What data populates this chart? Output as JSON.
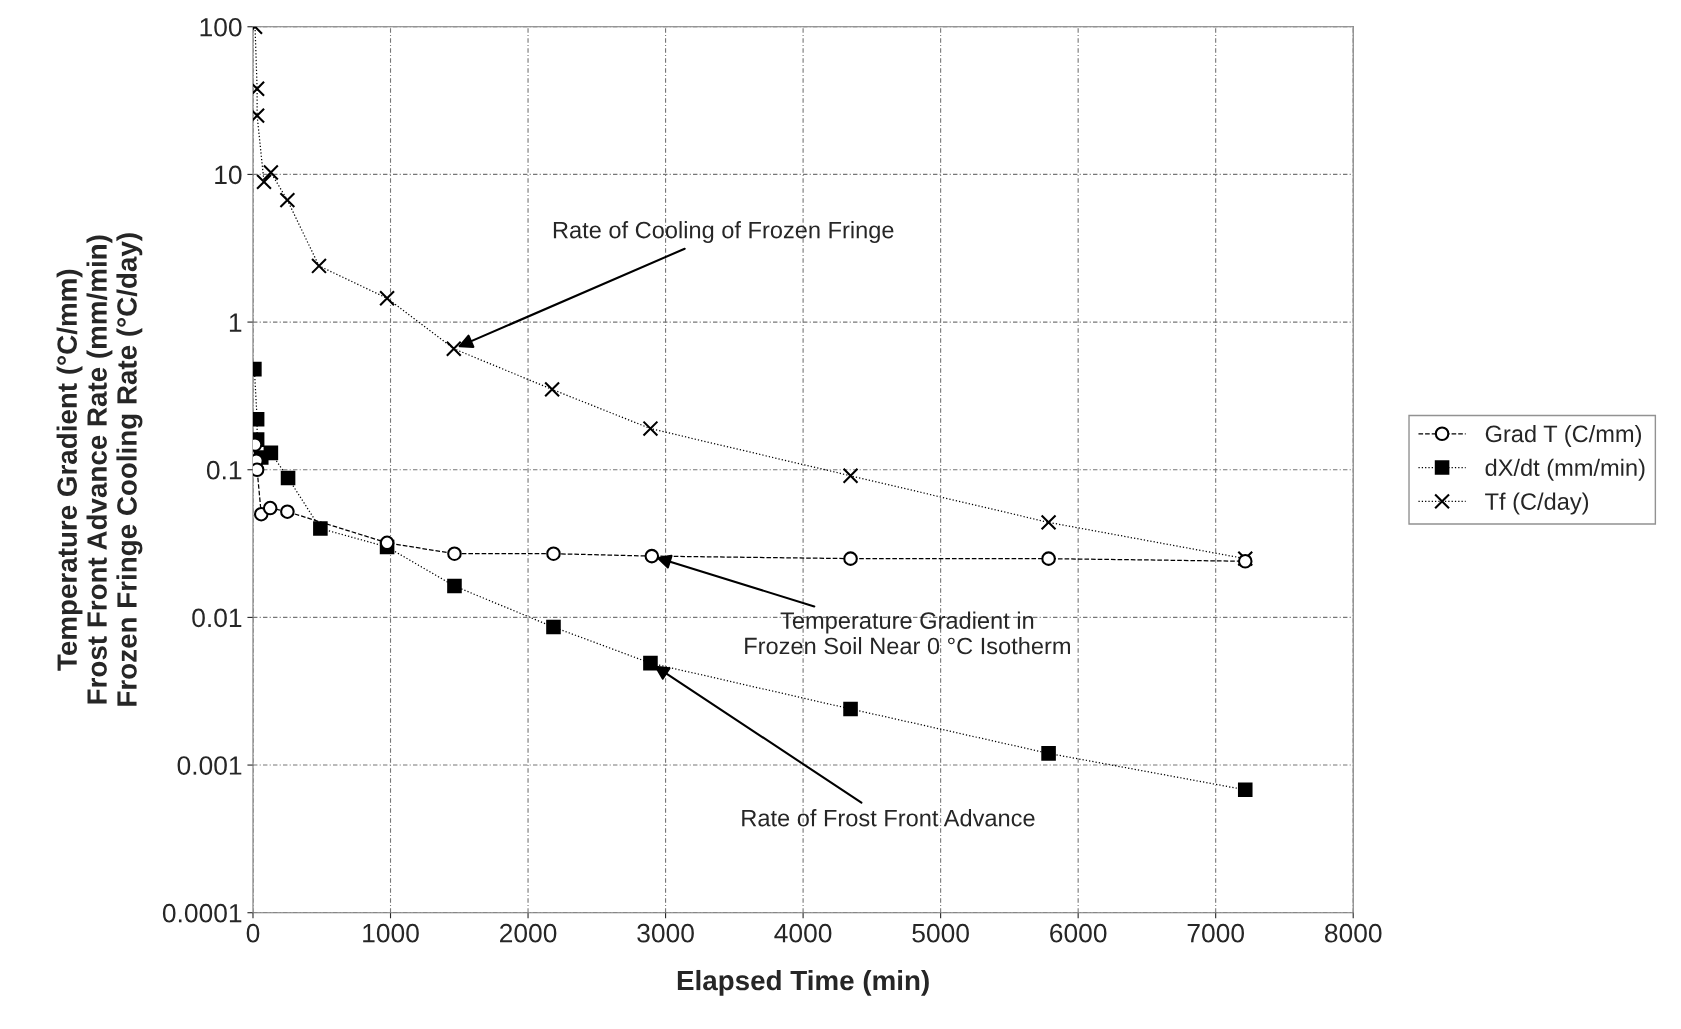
{
  "chart_data": {
    "type": "line",
    "xlabel": "Elapsed Time (min)",
    "ylabel": "Temperature Gradient (°C/mm)\nFrost Front Advance Rate (mm/min)\nFrozen Fringe Cooling Rate (°C/day)",
    "log": "y",
    "grid": true,
    "legend": "right",
    "xlim": [
      0,
      8000
    ],
    "xticks": [
      0,
      1000,
      2000,
      3000,
      4000,
      5000,
      6000,
      7000,
      8000
    ],
    "ylim": [
      0.0001,
      100
    ],
    "yticks": [
      0.0001,
      0.001,
      0.01,
      0.1,
      1,
      10,
      100
    ],
    "series": [
      {
        "name": "Grad T (C/mm)",
        "color": "#000000",
        "marker": "circle",
        "line_style": "dashed",
        "x": [
          15,
          25,
          30,
          60,
          125,
          250,
          975,
          1465,
          2185,
          2900,
          4345,
          5785,
          7215
        ],
        "values": [
          0.148,
          0.115,
          0.1,
          0.05,
          0.055,
          0.052,
          0.032,
          0.027,
          0.027,
          0.026,
          0.025,
          0.025,
          0.024
        ]
      },
      {
        "name": "dX/dt (mm/min)",
        "color": "#000000",
        "marker": "square",
        "line_style": "dotted",
        "x": [
          10,
          30,
          30,
          60,
          130,
          255,
          490,
          975,
          1465,
          2185,
          2890,
          4345,
          5785,
          7215
        ],
        "values": [
          0.48,
          0.22,
          0.16,
          0.121,
          0.13,
          0.088,
          0.04,
          0.03,
          0.0163,
          0.0086,
          0.0049,
          0.0024,
          0.0012,
          0.00068
        ]
      },
      {
        "name": "Tf (C/day)",
        "color": "#000000",
        "marker": "cross",
        "line_style": "dotted",
        "x": [
          15,
          30,
          30,
          80,
          130,
          250,
          480,
          975,
          1460,
          2175,
          2890,
          4345,
          5785,
          7215
        ],
        "values": [
          100,
          38,
          25,
          8.9,
          10.3,
          6.7,
          2.4,
          1.45,
          0.66,
          0.35,
          0.19,
          0.091,
          0.044,
          0.025
        ]
      }
    ],
    "annotations": [
      {
        "text": "Rate of Cooling of Frozen Fringe",
        "x": 1460,
        "y": 0.66
      },
      {
        "text": "Temperature Gradient in\nFrozen Soil Near 0 °C Isotherm",
        "x": 2900,
        "y": 0.026
      },
      {
        "text": "Rate of Frost Front Advance",
        "x": 2890,
        "y": 0.0049
      }
    ]
  }
}
